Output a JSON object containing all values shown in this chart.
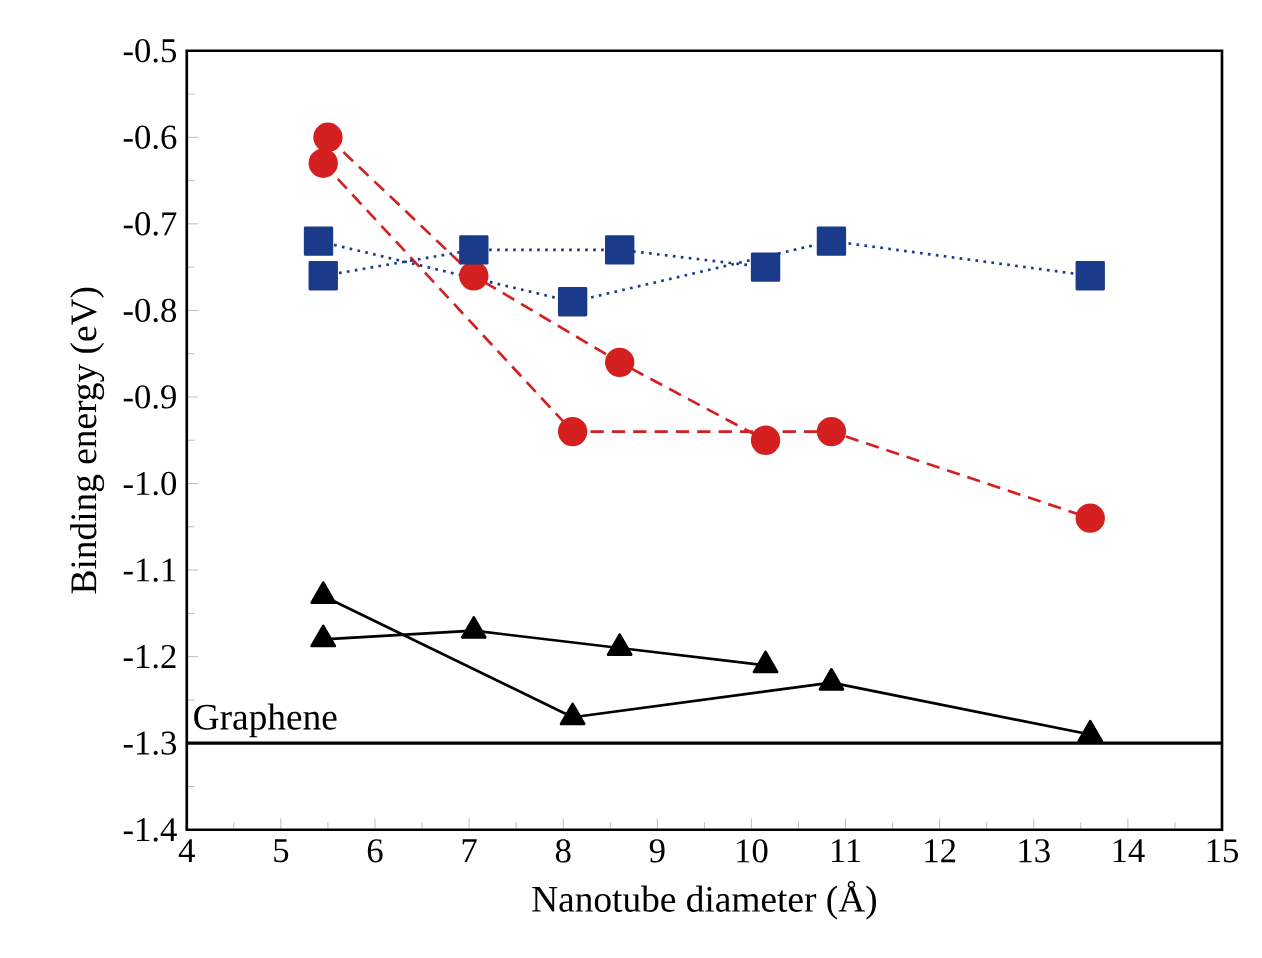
{
  "chart_data": {
    "type": "line",
    "xlabel": "Nanotube diameter (Å)",
    "ylabel": "Binding energy (eV)",
    "xlim": [
      4,
      15
    ],
    "ylim": [
      -1.4,
      -0.5
    ],
    "xticks": [
      4,
      5,
      6,
      7,
      8,
      9,
      10,
      11,
      12,
      13,
      14,
      15
    ],
    "yticks": [
      {
        "value": -1.4,
        "label": "-1.4"
      },
      {
        "value": -1.3,
        "label": "-1.3"
      },
      {
        "value": -1.2,
        "label": "-1.2"
      },
      {
        "value": -1.1,
        "label": "-1.1"
      },
      {
        "value": -1.0,
        "label": "-1.0"
      },
      {
        "value": -0.9,
        "label": "-0.9"
      },
      {
        "value": -0.8,
        "label": "-0.8"
      },
      {
        "value": -0.7,
        "label": "-0.7"
      },
      {
        "value": -0.6,
        "label": "-0.6"
      },
      {
        "value": -0.5,
        "label": "-0.5"
      }
    ],
    "grid": false,
    "ref_lines": [
      {
        "axis": "y",
        "value": -1.3,
        "label": "Graphene",
        "color": "#000000",
        "line_style": "solid"
      }
    ],
    "series": [
      {
        "color": "#d42020",
        "marker": "circle",
        "line_style": "dashed",
        "x": [
          5.45,
          8.1,
          10.85,
          13.6
        ],
        "values": [
          -0.63,
          -0.94,
          -0.94,
          -1.04
        ]
      },
      {
        "color": "#d42020",
        "marker": "circle",
        "line_style": "dashed",
        "x": [
          5.5,
          7.05,
          8.6,
          10.15
        ],
        "values": [
          -0.6,
          -0.76,
          -0.86,
          -0.95
        ]
      },
      {
        "color": "#1a3a8a",
        "marker": "square",
        "line_style": "dotted",
        "x": [
          5.4,
          8.1,
          10.85,
          13.6
        ],
        "values": [
          -0.72,
          -0.79,
          -0.72,
          -0.76
        ]
      },
      {
        "color": "#1a3a8a",
        "marker": "square",
        "line_style": "dotted",
        "x": [
          5.45,
          7.05,
          8.6,
          10.15
        ],
        "values": [
          -0.76,
          -0.73,
          -0.73,
          -0.75
        ]
      },
      {
        "color": "#000000",
        "marker": "triangle",
        "line_style": "solid",
        "x": [
          5.45,
          8.1,
          10.85,
          13.6
        ],
        "values": [
          -1.13,
          -1.27,
          -1.23,
          -1.29
        ]
      },
      {
        "color": "#000000",
        "marker": "triangle",
        "line_style": "solid",
        "x": [
          5.45,
          7.05,
          8.6,
          10.15
        ],
        "values": [
          -1.18,
          -1.17,
          -1.19,
          -1.21
        ]
      }
    ]
  }
}
